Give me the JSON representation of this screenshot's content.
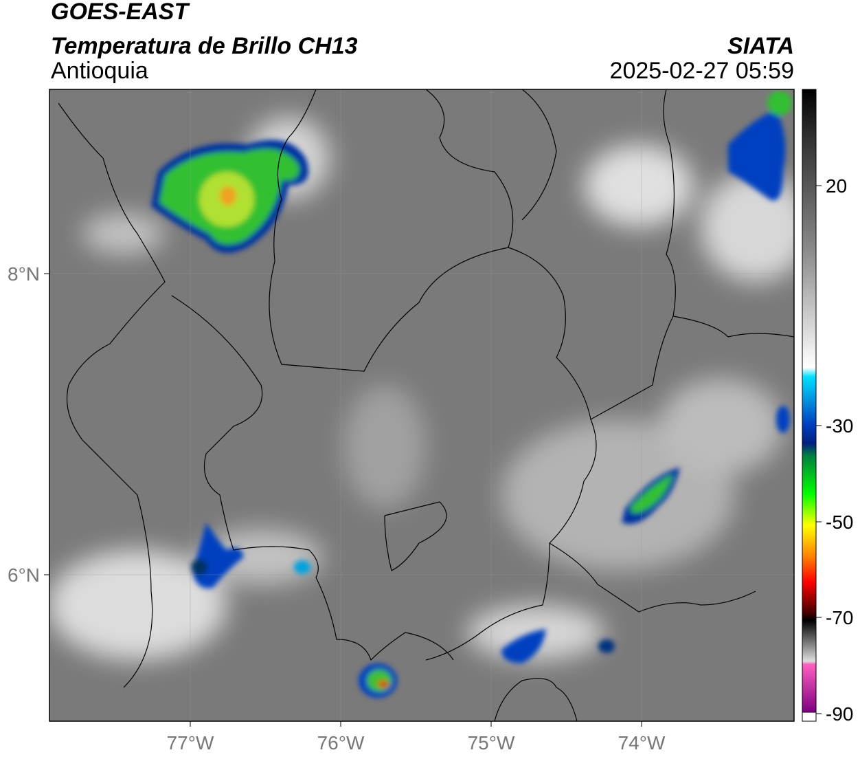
{
  "header": {
    "title": "GOES-EAST",
    "subtitle": "Temperatura de Brillo CH13",
    "region": "Antioquia",
    "source": "SIATA",
    "timestamp": "2025-02-27 05:59"
  },
  "map": {
    "lat_labels": [
      "8°N",
      "6°N"
    ],
    "lon_labels": [
      "77°W",
      "76°W",
      "75°W",
      "74°W"
    ]
  },
  "colorbar": {
    "ticks": [
      "20",
      "-30",
      "-50",
      "-70",
      "-90"
    ]
  }
}
